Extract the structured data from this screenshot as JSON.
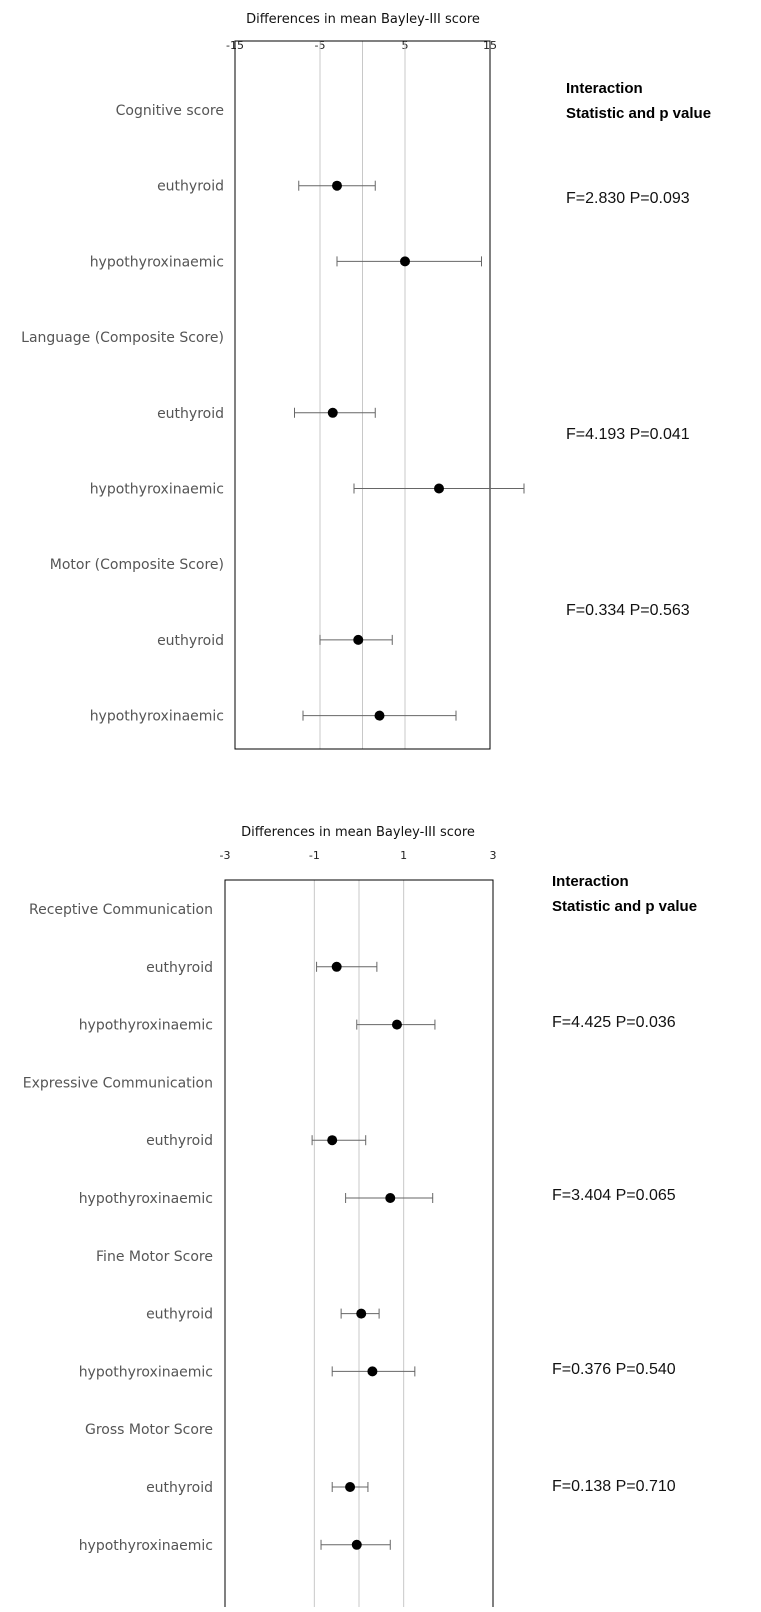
{
  "chart_data": [
    {
      "type": "forest",
      "title": "Differences in mean Bayley-III score",
      "xlim": [
        -15,
        15
      ],
      "xticks": [
        -15,
        -5,
        5,
        15
      ],
      "tick_labels": [
        "-15",
        "-5",
        "5",
        "15"
      ],
      "gridlines": [
        -5,
        5
      ],
      "reference_line": 0,
      "rows": [
        {
          "label": "Cognitive score",
          "header": true
        },
        {
          "label": "euthyroid",
          "estimate": -3.0,
          "lower": -7.5,
          "upper": 1.5
        },
        {
          "label": "hypothyroxinaemic",
          "estimate": 5.0,
          "lower": -3.0,
          "upper": 14.0
        },
        {
          "label": "Language (Composite Score)",
          "header": true
        },
        {
          "label": "euthyroid",
          "estimate": -3.5,
          "lower": -8.0,
          "upper": 1.5
        },
        {
          "label": "hypothyroxinaemic",
          "estimate": 9.0,
          "lower": -1.0,
          "upper": 19.0
        },
        {
          "label": "Motor (Composite Score)",
          "header": true
        },
        {
          "label": "euthyroid",
          "estimate": -0.5,
          "lower": -5.0,
          "upper": 3.5
        },
        {
          "label": "hypothyroxinaemic",
          "estimate": 2.0,
          "lower": -7.0,
          "upper": 11.0
        }
      ],
      "stats_header": [
        "Interaction",
        "Statistic and p value"
      ],
      "stats": [
        "F=2.830  P=0.093",
        "F=4.193  P=0.041",
        "F=0.334  P=0.563"
      ]
    },
    {
      "type": "forest",
      "title": "Differences in mean Bayley-III score",
      "xlim": [
        -3,
        3
      ],
      "xticks": [
        -3,
        -1,
        1,
        3
      ],
      "tick_labels": [
        "-3",
        "-1",
        "1",
        "3"
      ],
      "gridlines": [
        -1,
        1
      ],
      "reference_line": 0,
      "rows": [
        {
          "label": "Receptive Communication",
          "header": true
        },
        {
          "label": "euthyroid",
          "estimate": -0.5,
          "lower": -0.95,
          "upper": 0.4
        },
        {
          "label": "hypothyroxinaemic",
          "estimate": 0.85,
          "lower": -0.05,
          "upper": 1.7
        },
        {
          "label": "Expressive Communication",
          "header": true
        },
        {
          "label": "euthyroid",
          "estimate": -0.6,
          "lower": -1.05,
          "upper": 0.15
        },
        {
          "label": "hypothyroxinaemic",
          "estimate": 0.7,
          "lower": -0.3,
          "upper": 1.65
        },
        {
          "label": "Fine Motor Score",
          "header": true
        },
        {
          "label": "euthyroid",
          "estimate": 0.05,
          "lower": -0.4,
          "upper": 0.45
        },
        {
          "label": "hypothyroxinaemic",
          "estimate": 0.3,
          "lower": -0.6,
          "upper": 1.25
        },
        {
          "label": "Gross Motor Score",
          "header": true
        },
        {
          "label": "euthyroid",
          "estimate": -0.2,
          "lower": -0.6,
          "upper": 0.2
        },
        {
          "label": "hypothyroxinaemic",
          "estimate": -0.05,
          "lower": -0.85,
          "upper": 0.7
        }
      ],
      "stats_header": [
        "Interaction",
        "Statistic and p value"
      ],
      "stats": [
        "F=4.425  P=0.036",
        "F=3.404  P=0.065",
        "F=0.376  P=0.540",
        "F=0.138  P=0.710"
      ]
    }
  ]
}
